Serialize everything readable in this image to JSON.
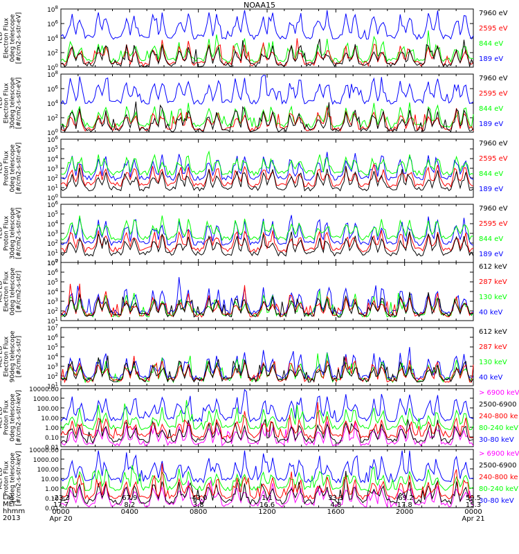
{
  "title": "NOAA15",
  "colors": {
    "blue": "#0000ff",
    "red": "#ff0000",
    "green": "#00ff00",
    "black": "#000000",
    "magenta": "#ff00ff"
  },
  "chart_data": [
    {
      "type": "line",
      "ylabel": [
        "TED",
        "Electron Flux",
        "0deg telescope",
        "[#/cm2-s-str-eV]"
      ],
      "ylim": [
        1,
        100000000.0
      ],
      "yscale": "log",
      "ytick_labels": [
        "10^0",
        "10^2",
        "10^4",
        "10^6",
        "10^8"
      ],
      "series": [
        {
          "name": "7960 eV",
          "color": "#000000"
        },
        {
          "name": "2595 eV",
          "color": "#ff0000"
        },
        {
          "name": "844 eV",
          "color": "#00ff00"
        },
        {
          "name": "189 eV",
          "color": "#0000ff"
        }
      ]
    },
    {
      "type": "line",
      "ylabel": [
        "TED",
        "Electron Flux",
        "30deg telescope",
        "[#/cm2-s-str-eV]"
      ],
      "ylim": [
        1,
        100000000.0
      ],
      "yscale": "log",
      "ytick_labels": [
        "10^0",
        "10^2",
        "10^4",
        "10^6",
        "10^8"
      ],
      "series": [
        {
          "name": "7960 eV",
          "color": "#000000"
        },
        {
          "name": "2595 eV",
          "color": "#ff0000"
        },
        {
          "name": "844 eV",
          "color": "#00ff00"
        },
        {
          "name": "189 eV",
          "color": "#0000ff"
        }
      ]
    },
    {
      "type": "line",
      "ylabel": [
        "TED",
        "Proton Flux",
        "0deg telescope",
        "[#/cm2-s-str-eV]"
      ],
      "ylim": [
        1,
        1000000.0
      ],
      "yscale": "log",
      "ytick_labels": [
        "10^0",
        "10^1",
        "10^2",
        "10^3",
        "10^4",
        "10^5",
        "10^6"
      ],
      "series": [
        {
          "name": "7960 eV",
          "color": "#000000"
        },
        {
          "name": "2595 eV",
          "color": "#ff0000"
        },
        {
          "name": "844 eV",
          "color": "#00ff00"
        },
        {
          "name": "189 eV",
          "color": "#0000ff"
        }
      ]
    },
    {
      "type": "line",
      "ylabel": [
        "TED",
        "Proton Flux",
        "30deg telescope",
        "[#/cm2-s-str-eV]"
      ],
      "ylim": [
        1,
        1000000.0
      ],
      "yscale": "log",
      "ytick_labels": [
        "10^0",
        "10^1",
        "10^2",
        "10^3",
        "10^4",
        "10^5",
        "10^6"
      ],
      "series": [
        {
          "name": "7960 eV",
          "color": "#000000"
        },
        {
          "name": "2595 eV",
          "color": "#ff0000"
        },
        {
          "name": "844 eV",
          "color": "#00ff00"
        },
        {
          "name": "189 eV",
          "color": "#0000ff"
        }
      ]
    },
    {
      "type": "line",
      "ylabel": [
        "MEPED",
        "Electron Flux",
        "0deg telescope",
        "[#/cm2-s-str]"
      ],
      "ylim": [
        10,
        10000000.0
      ],
      "yscale": "log",
      "ytick_labels": [
        "10^1",
        "10^2",
        "10^3",
        "10^4",
        "10^5",
        "10^6",
        "10^7"
      ],
      "series": [
        {
          "name": "612 keV",
          "color": "#000000"
        },
        {
          "name": "287 keV",
          "color": "#ff0000"
        },
        {
          "name": "130 keV",
          "color": "#00ff00"
        },
        {
          "name": "40 keV",
          "color": "#0000ff"
        }
      ]
    },
    {
      "type": "line",
      "ylabel": [
        "MEPED",
        "Electron Flux",
        "90deg telescope",
        "[#/cm2-s-str]"
      ],
      "ylim": [
        10,
        10000000.0
      ],
      "yscale": "log",
      "ytick_labels": [
        "10^1",
        "10^2",
        "10^3",
        "10^4",
        "10^5",
        "10^6",
        "10^7"
      ],
      "series": [
        {
          "name": "612 keV",
          "color": "#000000"
        },
        {
          "name": "287 keV",
          "color": "#ff0000"
        },
        {
          "name": "130 keV",
          "color": "#00ff00"
        },
        {
          "name": "40 keV",
          "color": "#0000ff"
        }
      ]
    },
    {
      "type": "line",
      "ylabel": [
        "MEPED",
        "Proton Flux",
        "0deg telescope",
        "[#/cm2-s-str-keV]"
      ],
      "ylim": [
        0.01,
        10000
      ],
      "yscale": "log",
      "ytick_labels": [
        "0.01",
        "0.10",
        "1.00",
        "10.00",
        "100.00",
        "1000.00",
        "10000.00"
      ],
      "series": [
        {
          "name": "> 6900 keV",
          "color": "#ff00ff"
        },
        {
          "name": "2500-6900",
          "color": "#000000"
        },
        {
          "name": "240-800 ke",
          "color": "#ff0000"
        },
        {
          "name": "80-240 keV",
          "color": "#00ff00"
        },
        {
          "name": "30-80 keV",
          "color": "#0000ff"
        }
      ]
    },
    {
      "type": "line",
      "ylabel": [
        "MEPED",
        "Proton Flux",
        "90deg telescope",
        "[#/cm2-s-str-keV]"
      ],
      "ylim": [
        0.01,
        10000
      ],
      "yscale": "log",
      "ytick_labels": [
        "0.01",
        "0.10",
        "1.00",
        "10.00",
        "100.00",
        "1000.00",
        "10000.00"
      ],
      "series": [
        {
          "name": "> 6900 keV",
          "color": "#ff00ff"
        },
        {
          "name": "2500-6900",
          "color": "#000000"
        },
        {
          "name": "240-800 ke",
          "color": "#ff0000"
        },
        {
          "name": "80-240 keV",
          "color": "#00ff00"
        },
        {
          "name": "30-80 keV",
          "color": "#0000ff"
        }
      ]
    }
  ],
  "x_axis": {
    "row_labels": [
      "Lat",
      "MLT",
      "hhmm",
      "2013"
    ],
    "ticks": [
      {
        "lat": "-23.3",
        "mlt": "17.7",
        "hhmm": "0000",
        "date": "Apr 20"
      },
      {
        "lat": "67.9",
        "mlt": "8.2",
        "hhmm": "0400",
        "date": ""
      },
      {
        "lat": "-43.0",
        "mlt": "3.8",
        "hhmm": "0800",
        "date": ""
      },
      {
        "lat": "1.1",
        "mlt": "16.6",
        "hhmm": "1200",
        "date": ""
      },
      {
        "lat": "33.3",
        "mlt": "4.8",
        "hhmm": "1600",
        "date": ""
      },
      {
        "lat": "-69.2",
        "mlt": "17.8",
        "hhmm": "2000",
        "date": ""
      },
      {
        "lat": "59.5",
        "mlt": "15.3",
        "hhmm": "0000",
        "date": "Apr 21"
      }
    ],
    "xlim_hours": [
      0,
      24
    ]
  }
}
